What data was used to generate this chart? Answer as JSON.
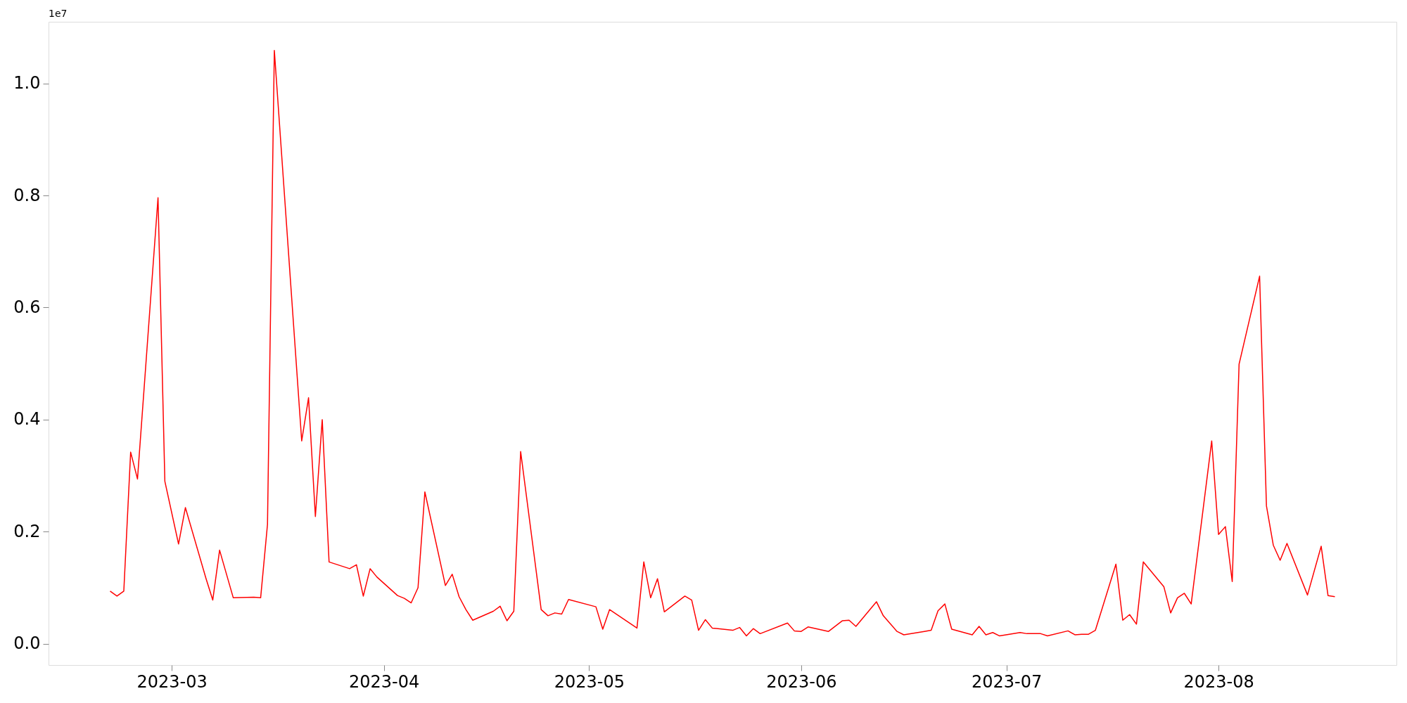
{
  "chart_data": {
    "type": "line",
    "x": [
      "2023-02-20",
      "2023-02-21",
      "2023-02-22",
      "2023-02-23",
      "2023-02-24",
      "2023-02-27",
      "2023-02-28",
      "2023-03-02",
      "2023-03-03",
      "2023-03-06",
      "2023-03-07",
      "2023-03-08",
      "2023-03-10",
      "2023-03-13",
      "2023-03-14",
      "2023-03-15",
      "2023-03-16",
      "2023-03-20",
      "2023-03-21",
      "2023-03-22",
      "2023-03-23",
      "2023-03-24",
      "2023-03-27",
      "2023-03-28",
      "2023-03-29",
      "2023-03-30",
      "2023-03-31",
      "2023-04-03",
      "2023-04-04",
      "2023-04-05",
      "2023-04-06",
      "2023-04-07",
      "2023-04-10",
      "2023-04-11",
      "2023-04-12",
      "2023-04-13",
      "2023-04-14",
      "2023-04-17",
      "2023-04-18",
      "2023-04-19",
      "2023-04-20",
      "2023-04-21",
      "2023-04-24",
      "2023-04-25",
      "2023-04-26",
      "2023-04-27",
      "2023-04-28",
      "2023-05-02",
      "2023-05-03",
      "2023-05-04",
      "2023-05-08",
      "2023-05-09",
      "2023-05-10",
      "2023-05-11",
      "2023-05-12",
      "2023-05-15",
      "2023-05-16",
      "2023-05-17",
      "2023-05-18",
      "2023-05-19",
      "2023-05-22",
      "2023-05-23",
      "2023-05-24",
      "2023-05-25",
      "2023-05-26",
      "2023-05-30",
      "2023-05-31",
      "2023-06-01",
      "2023-06-02",
      "2023-06-05",
      "2023-06-07",
      "2023-06-08",
      "2023-06-09",
      "2023-06-12",
      "2023-06-13",
      "2023-06-14",
      "2023-06-15",
      "2023-06-16",
      "2023-06-19",
      "2023-06-20",
      "2023-06-21",
      "2023-06-22",
      "2023-06-23",
      "2023-06-26",
      "2023-06-27",
      "2023-06-28",
      "2023-06-29",
      "2023-06-30",
      "2023-07-03",
      "2023-07-04",
      "2023-07-05",
      "2023-07-06",
      "2023-07-07",
      "2023-07-10",
      "2023-07-11",
      "2023-07-12",
      "2023-07-13",
      "2023-07-14",
      "2023-07-17",
      "2023-07-18",
      "2023-07-19",
      "2023-07-20",
      "2023-07-21",
      "2023-07-24",
      "2023-07-25",
      "2023-07-26",
      "2023-07-27",
      "2023-07-28",
      "2023-07-31",
      "2023-08-01",
      "2023-08-02",
      "2023-08-03",
      "2023-08-04",
      "2023-08-07",
      "2023-08-08",
      "2023-08-09",
      "2023-08-10",
      "2023-08-11",
      "2023-08-14",
      "2023-08-16",
      "2023-08-17",
      "2023-08-18"
    ],
    "series": [
      {
        "color": "#ff0000",
        "values": [
          0.094,
          0.085,
          0.094,
          0.342,
          0.294,
          0.796,
          0.29,
          0.178,
          0.243,
          0.117,
          0.078,
          0.167,
          0.082,
          0.083,
          0.082,
          0.213,
          1.059,
          0.362,
          0.439,
          0.227,
          0.4,
          0.146,
          0.134,
          0.141,
          0.085,
          0.134,
          0.119,
          0.086,
          0.081,
          0.073,
          0.1,
          0.271,
          0.104,
          0.124,
          0.084,
          0.061,
          0.042,
          0.058,
          0.067,
          0.041,
          0.058,
          0.343,
          0.061,
          0.05,
          0.055,
          0.053,
          0.079,
          0.066,
          0.026,
          0.061,
          0.028,
          0.146,
          0.082,
          0.116,
          0.057,
          0.085,
          0.078,
          0.024,
          0.043,
          0.028,
          0.024,
          0.029,
          0.014,
          0.027,
          0.018,
          0.037,
          0.023,
          0.022,
          0.03,
          0.022,
          0.041,
          0.042,
          0.031,
          0.075,
          0.05,
          0.036,
          0.022,
          0.016,
          0.022,
          0.024,
          0.059,
          0.071,
          0.026,
          0.016,
          0.031,
          0.016,
          0.02,
          0.014,
          0.02,
          0.018,
          0.018,
          0.018,
          0.014,
          0.023,
          0.016,
          0.017,
          0.017,
          0.024,
          0.142,
          0.042,
          0.052,
          0.035,
          0.146,
          0.102,
          0.055,
          0.082,
          0.09,
          0.071,
          0.362,
          0.195,
          0.209,
          0.111,
          0.499,
          0.656,
          0.246,
          0.176,
          0.149,
          0.179,
          0.087,
          0.174,
          0.086,
          0.084
        ]
      }
    ],
    "xlim": [
      "2023-02-11",
      "2023-08-27"
    ],
    "xticks": [
      {
        "value": "2023-03-01",
        "label": "2023-03"
      },
      {
        "value": "2023-04-01",
        "label": "2023-04"
      },
      {
        "value": "2023-05-01",
        "label": "2023-05"
      },
      {
        "value": "2023-06-01",
        "label": "2023-06"
      },
      {
        "value": "2023-07-01",
        "label": "2023-07"
      },
      {
        "value": "2023-08-01",
        "label": "2023-08"
      }
    ],
    "ylim": [
      -0.038,
      1.11
    ],
    "yticks": [
      {
        "value": 0,
        "label": "0.0"
      },
      0.2,
      0.4,
      0.6,
      0.8,
      {
        "value": 1,
        "label": "1.0"
      }
    ],
    "annotations": [
      "1e7"
    ]
  }
}
